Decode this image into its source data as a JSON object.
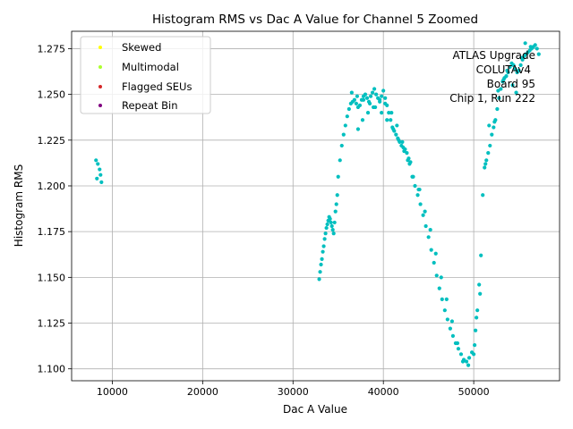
{
  "chart_data": {
    "type": "scatter",
    "title": "Histogram RMS vs Dac A Value for Channel 5 Zoomed",
    "xlabel": "Dac A Value",
    "ylabel": "Histogram RMS",
    "xlim": [
      5500,
      59500
    ],
    "ylim": [
      1.0935,
      1.2845
    ],
    "grid": true,
    "xticks": [
      10000,
      20000,
      30000,
      40000,
      50000
    ],
    "xtick_labels": [
      "10000",
      "20000",
      "30000",
      "40000",
      "50000"
    ],
    "yticks": [
      1.1,
      1.125,
      1.15,
      1.175,
      1.2,
      1.225,
      1.25,
      1.275
    ],
    "ytick_labels": [
      "1.100",
      "1.125",
      "1.150",
      "1.175",
      "1.200",
      "1.225",
      "1.250",
      "1.275"
    ],
    "legend": {
      "position": "top-left",
      "entries": [
        {
          "label": "Skewed",
          "color": "#ffff00"
        },
        {
          "label": "Multimodal",
          "color": "#adff2f"
        },
        {
          "label": "Flagged SEUs",
          "color": "#d62728"
        },
        {
          "label": "Repeat Bin",
          "color": "#800080"
        }
      ]
    },
    "annotation": [
      "ATLAS Upgrade",
      "COLUTAv4",
      "Board 95",
      "Chip 1, Run 222"
    ],
    "series": [
      {
        "name": "Channel 5",
        "color": "#00bfbf",
        "x": [
          8200,
          8400,
          8600,
          8700,
          8800,
          8300,
          32900,
          33000,
          33100,
          33200,
          33300,
          33400,
          33500,
          33600,
          33700,
          33800,
          33900,
          34000,
          34100,
          34200,
          34300,
          34400,
          34500,
          34600,
          34700,
          34800,
          34900,
          35000,
          35200,
          35400,
          35600,
          35800,
          36000,
          36200,
          36400,
          36600,
          36800,
          37000,
          37200,
          37400,
          37600,
          37800,
          38000,
          38200,
          38400,
          38600,
          38800,
          39000,
          39200,
          39400,
          39600,
          39800,
          40000,
          40200,
          40400,
          40600,
          40800,
          41000,
          41200,
          41400,
          41600,
          41800,
          42000,
          42200,
          42400,
          42600,
          42800,
          43000,
          37200,
          37700,
          38300,
          38900,
          39600,
          40200,
          40900,
          41500,
          42100,
          42700,
          43300,
          43900,
          36500,
          37100,
          37800,
          38500,
          39100,
          39800,
          40400,
          41100,
          41700,
          42300,
          42900,
          43200,
          43500,
          43800,
          44100,
          44400,
          44700,
          45000,
          45300,
          45600,
          45900,
          46200,
          46500,
          46800,
          47100,
          47400,
          47700,
          48000,
          48300,
          48600,
          48900,
          49200,
          49500,
          49800,
          50100,
          44000,
          44600,
          45200,
          45800,
          46400,
          47000,
          47600,
          48200,
          48800,
          49400,
          50000,
          50200,
          50400,
          50600,
          50800,
          51000,
          51200,
          51400,
          51600,
          51800,
          52000,
          52200,
          52400,
          52600,
          52800,
          53000,
          53200,
          53400,
          53600,
          53800,
          54000,
          54200,
          54400,
          54600,
          54800,
          55000,
          55200,
          55400,
          55600,
          55800,
          56000,
          56200,
          56400,
          56600,
          56800,
          57000,
          57200,
          50300,
          50700,
          51300,
          51700,
          52300,
          52700,
          53300,
          53700,
          54300,
          54700,
          55300,
          55700,
          56300
        ],
        "y": [
          1.214,
          1.212,
          1.209,
          1.206,
          1.202,
          1.204,
          1.149,
          1.153,
          1.157,
          1.16,
          1.164,
          1.167,
          1.171,
          1.174,
          1.177,
          1.179,
          1.181,
          1.183,
          1.182,
          1.18,
          1.178,
          1.176,
          1.174,
          1.18,
          1.186,
          1.19,
          1.195,
          1.205,
          1.214,
          1.222,
          1.228,
          1.233,
          1.238,
          1.242,
          1.245,
          1.246,
          1.247,
          1.245,
          1.243,
          1.244,
          1.247,
          1.249,
          1.25,
          1.248,
          1.246,
          1.249,
          1.251,
          1.253,
          1.25,
          1.248,
          1.247,
          1.249,
          1.252,
          1.248,
          1.244,
          1.24,
          1.236,
          1.232,
          1.23,
          1.228,
          1.226,
          1.224,
          1.222,
          1.221,
          1.22,
          1.218,
          1.215,
          1.213,
          1.231,
          1.236,
          1.24,
          1.243,
          1.246,
          1.245,
          1.24,
          1.233,
          1.224,
          1.214,
          1.205,
          1.198,
          1.251,
          1.249,
          1.247,
          1.245,
          1.243,
          1.24,
          1.236,
          1.231,
          1.225,
          1.219,
          1.212,
          1.205,
          1.2,
          1.195,
          1.19,
          1.184,
          1.178,
          1.172,
          1.165,
          1.158,
          1.151,
          1.144,
          1.138,
          1.132,
          1.127,
          1.122,
          1.118,
          1.114,
          1.111,
          1.108,
          1.105,
          1.104,
          1.106,
          1.109,
          1.113,
          1.198,
          1.186,
          1.176,
          1.163,
          1.15,
          1.138,
          1.126,
          1.114,
          1.104,
          1.102,
          1.108,
          1.121,
          1.132,
          1.146,
          1.162,
          1.195,
          1.21,
          1.214,
          1.218,
          1.222,
          1.228,
          1.232,
          1.236,
          1.242,
          1.248,
          1.253,
          1.257,
          1.259,
          1.26,
          1.262,
          1.265,
          1.267,
          1.266,
          1.264,
          1.262,
          1.263,
          1.266,
          1.269,
          1.271,
          1.272,
          1.273,
          1.274,
          1.275,
          1.276,
          1.277,
          1.275,
          1.272,
          1.128,
          1.141,
          1.212,
          1.233,
          1.235,
          1.252,
          1.258,
          1.263,
          1.255,
          1.251,
          1.27,
          1.278,
          1.276
        ]
      }
    ]
  }
}
